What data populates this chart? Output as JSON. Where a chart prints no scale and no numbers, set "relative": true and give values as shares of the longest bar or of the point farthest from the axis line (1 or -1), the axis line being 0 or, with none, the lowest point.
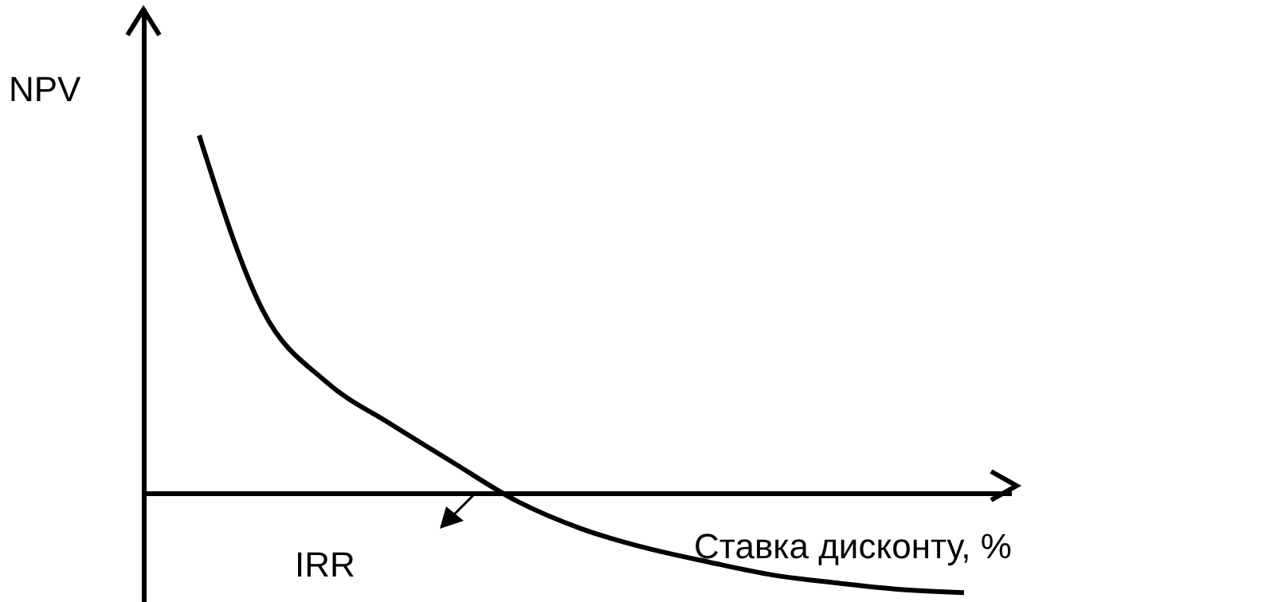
{
  "chart_data": {
    "type": "line",
    "relative": true,
    "xlabel": "Ставка дисконту, %",
    "ylabel": "NPV",
    "annotations": [
      "IRR"
    ],
    "color": "#000000",
    "categories": [
      null,
      null,
      null,
      null,
      null,
      null,
      null,
      null,
      null,
      null,
      null,
      null,
      null
    ],
    "values": [
      1,
      0.511,
      0.311,
      0.195,
      0.085,
      -0.022,
      -0.098,
      -0.151,
      -0.191,
      -0.227,
      -0.249,
      -0.267,
      -0.276
    ],
    "grid": false,
    "marker": "none",
    "line_style": "solid"
  }
}
